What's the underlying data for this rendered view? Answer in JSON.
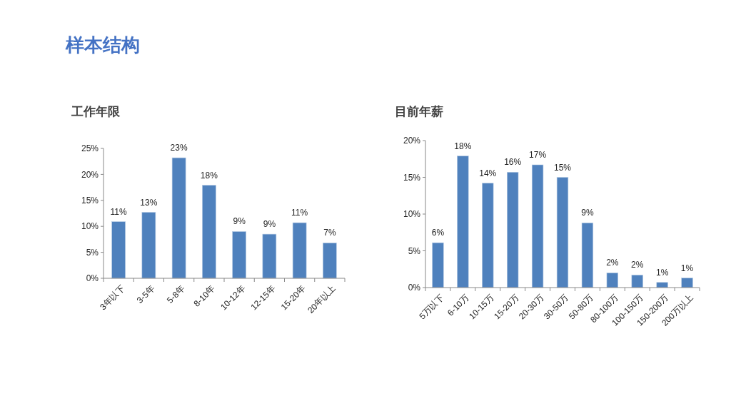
{
  "chart_data": [
    {
      "type": "bar",
      "title": "工作年限",
      "annotations": [
        "样本结构"
      ],
      "categories": [
        "3年以下",
        "3-5年",
        "5-8年",
        "8-10年",
        "10-12年",
        "12-15年",
        "15-20年",
        "20年以上"
      ],
      "values": [
        10.9,
        12.7,
        23.2,
        17.9,
        9.0,
        8.5,
        10.7,
        6.8
      ],
      "value_labels": [
        "11%",
        "13%",
        "23%",
        "18%",
        "9%",
        "9%",
        "11%",
        "7%"
      ],
      "color": "#4f81bd",
      "ylim": [
        0,
        25
      ],
      "yticks": [
        {
          "value": 0,
          "label": "0%"
        },
        {
          "value": 5,
          "label": "5%"
        },
        {
          "value": 10,
          "label": "10%"
        },
        {
          "value": 15,
          "label": "15%"
        },
        {
          "value": 20,
          "label": "20%"
        },
        {
          "value": 25,
          "label": "25%"
        }
      ],
      "grid": false
    },
    {
      "type": "bar",
      "title": "目前年薪",
      "categories": [
        "5万以下",
        "6-10万",
        "10-15万",
        "15-20万",
        "20-30万",
        "30-50万",
        "50-80万",
        "80-100万",
        "100-150万",
        "150-200万",
        "200万以上"
      ],
      "values": [
        6.1,
        17.9,
        14.2,
        15.7,
        16.7,
        15.0,
        8.8,
        2.0,
        1.7,
        0.7,
        1.3
      ],
      "value_labels": [
        "6%",
        "18%",
        "14%",
        "16%",
        "17%",
        "15%",
        "9%",
        "2%",
        "2%",
        "1%",
        "1%"
      ],
      "color": "#4f81bd",
      "ylim": [
        0,
        20
      ],
      "yticks": [
        {
          "value": 0,
          "label": "0%"
        },
        {
          "value": 5,
          "label": "5%"
        },
        {
          "value": 10,
          "label": "10%"
        },
        {
          "value": 15,
          "label": "15%"
        },
        {
          "value": 20,
          "label": "20%"
        }
      ],
      "grid": false
    }
  ]
}
